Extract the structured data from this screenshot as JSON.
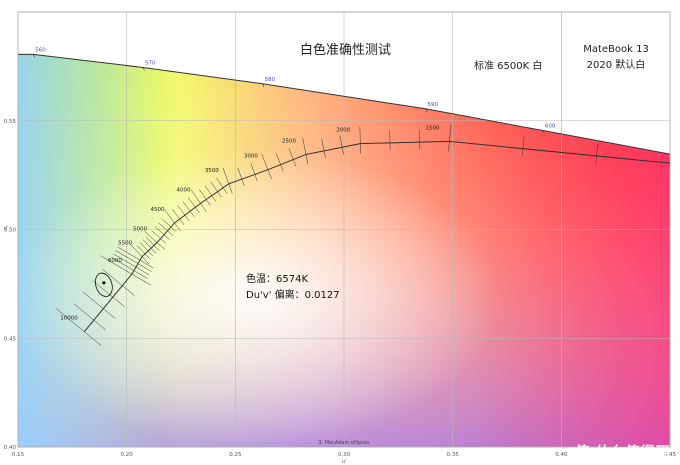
{
  "chart_data": {
    "type": "scatter",
    "title": "白色准确性测试",
    "xlabel": "u'",
    "ylabel": "v'",
    "xlim": [
      0.15,
      0.45
    ],
    "ylim": [
      0.4,
      0.6
    ],
    "x_ticks": [
      "0.15",
      "0.20",
      "0.25",
      "0.30",
      "0.35",
      "0.40",
      "0.45"
    ],
    "y_ticks": [
      "0.40",
      "0.45",
      "0.50",
      "0.55"
    ],
    "grid": true,
    "spectral_locus": [
      {
        "wavelength": "560",
        "u": 0.157,
        "v": 0.5805
      },
      {
        "wavelength": "570",
        "u": 0.2075,
        "v": 0.5745
      },
      {
        "wavelength": "580",
        "u": 0.2625,
        "v": 0.567
      },
      {
        "wavelength": "590",
        "u": 0.3375,
        "v": 0.5555
      },
      {
        "wavelength": "600",
        "u": 0.3915,
        "v": 0.5455
      }
    ],
    "planckian_locus": [
      {
        "cct": "10000",
        "u": 0.1805,
        "v": 0.453
      },
      {
        "cct": "6000",
        "u": 0.2024,
        "v": 0.4795
      },
      {
        "cct": "5500",
        "u": 0.2071,
        "v": 0.4875
      },
      {
        "cct": "5000",
        "u": 0.214,
        "v": 0.494
      },
      {
        "cct": "4500",
        "u": 0.222,
        "v": 0.503
      },
      {
        "cct": "4000",
        "u": 0.234,
        "v": 0.512
      },
      {
        "cct": "3500",
        "u": 0.247,
        "v": 0.521
      },
      {
        "cct": "3000",
        "u": 0.265,
        "v": 0.5275
      },
      {
        "cct": "2500",
        "u": 0.2825,
        "v": 0.5345
      },
      {
        "cct": "2000",
        "u": 0.3075,
        "v": 0.5395
      },
      {
        "cct": "1500",
        "u": 0.3485,
        "v": 0.5405
      },
      {
        "cct": "",
        "u": 0.45,
        "v": 0.5305
      }
    ],
    "measured_point": {
      "u": 0.1895,
      "v": 0.4755
    },
    "annotation_line1": "色温：6574K",
    "annotation_line2": "Du'v' 偏离：0.0127",
    "legend_text": "3. MacAdam ellipses",
    "standard_label": "标准 6500K 白",
    "device_line1": "MateBook 13",
    "device_line2": "2020 默认白"
  },
  "watermark": "值 什么值得买"
}
